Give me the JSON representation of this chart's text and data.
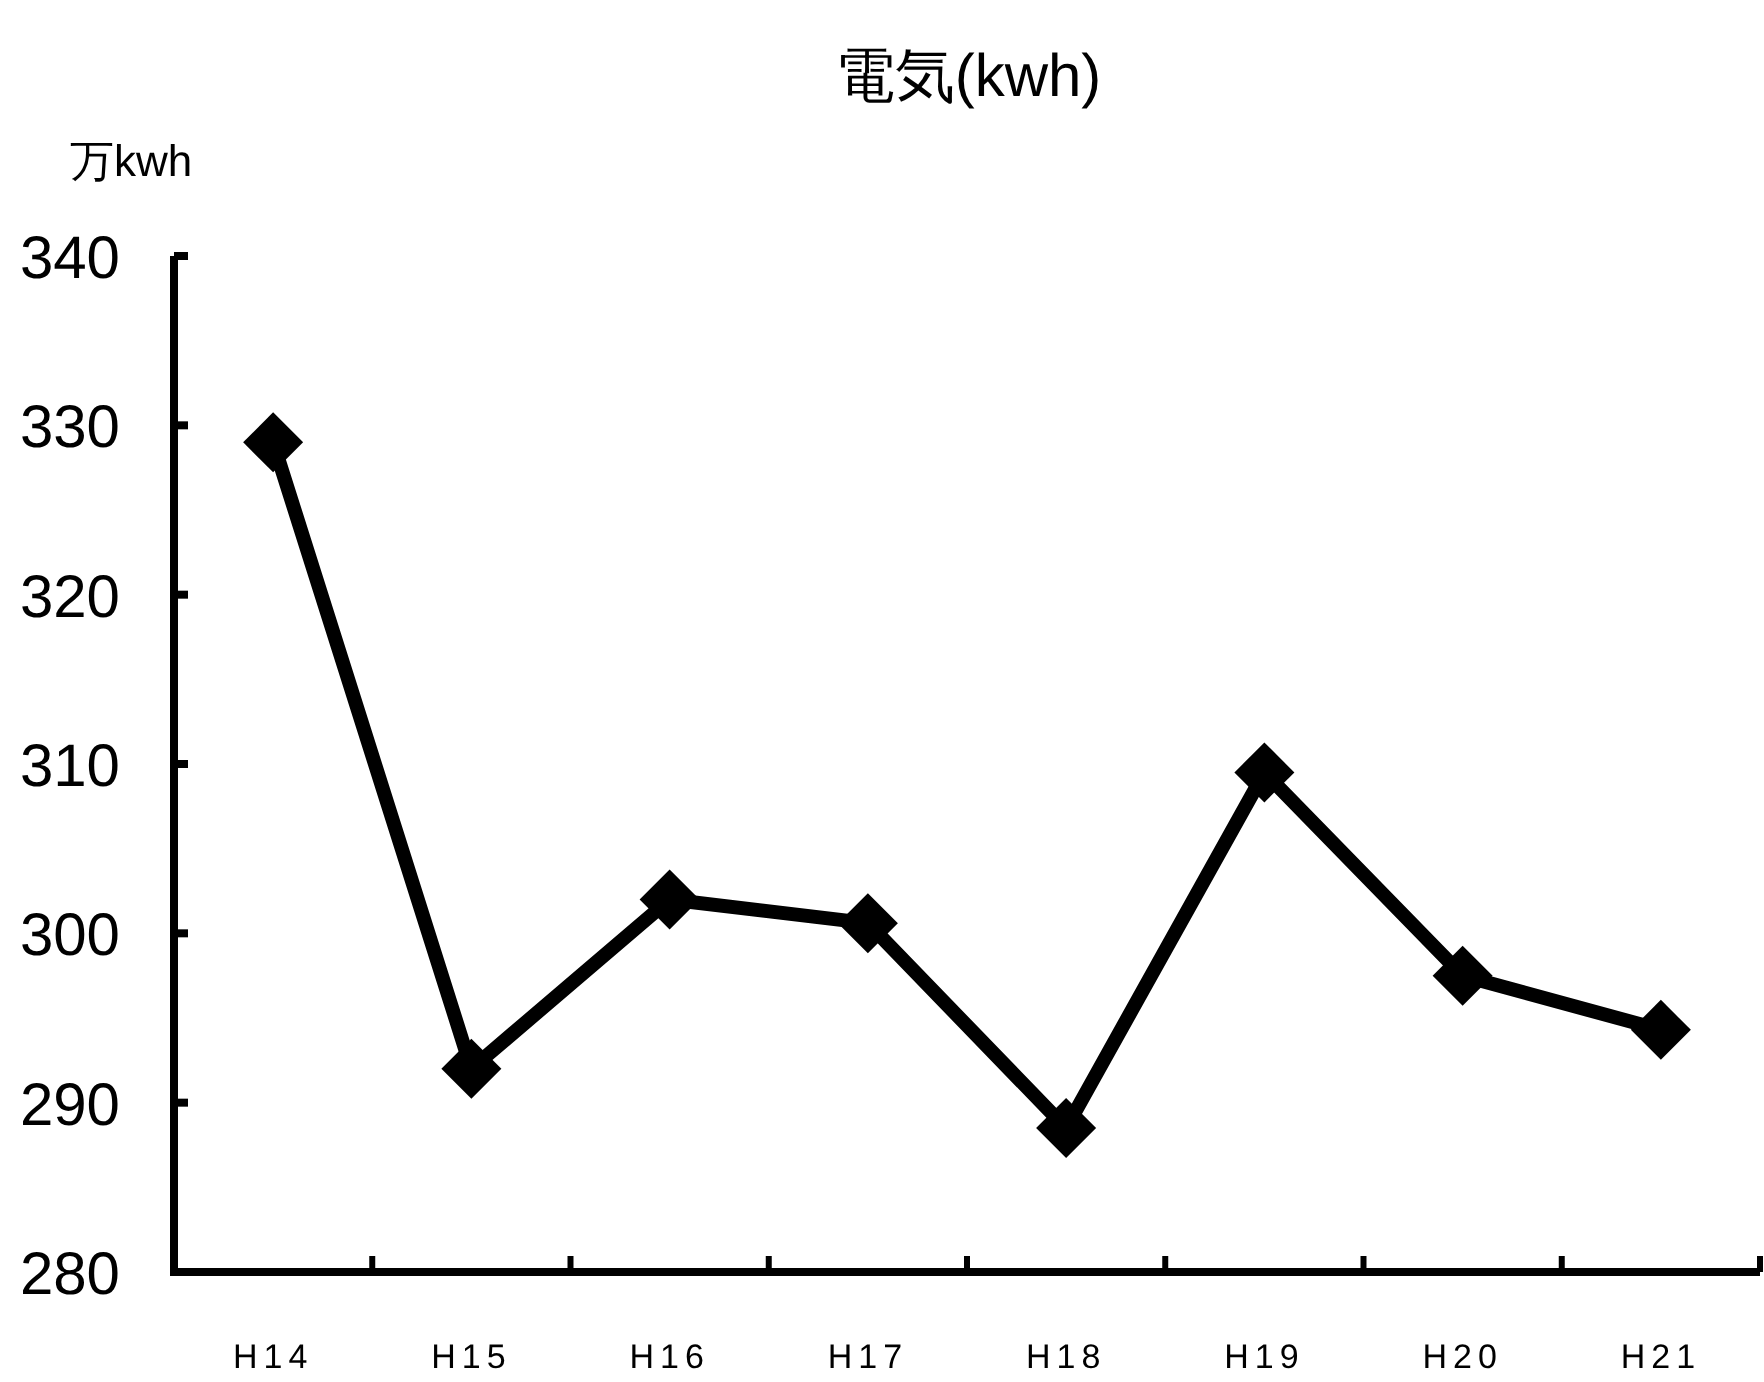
{
  "chart_data": {
    "type": "line",
    "title": "電気(kwh)",
    "ylabel": "万kwh",
    "categories": [
      "H14",
      "H15",
      "H16",
      "H17",
      "H18",
      "H19",
      "H20",
      "H21"
    ],
    "series": [
      {
        "color": "#000000",
        "values": [
          329.0,
          292.0,
          302.0,
          300.6,
          288.5,
          309.5,
          297.5,
          294.3
        ]
      }
    ],
    "ylim": [
      280,
      340
    ],
    "yticks": [
      280,
      290,
      300,
      310,
      320,
      330,
      340
    ],
    "marker": "diamond",
    "line_style": "solid",
    "grid": false
  }
}
